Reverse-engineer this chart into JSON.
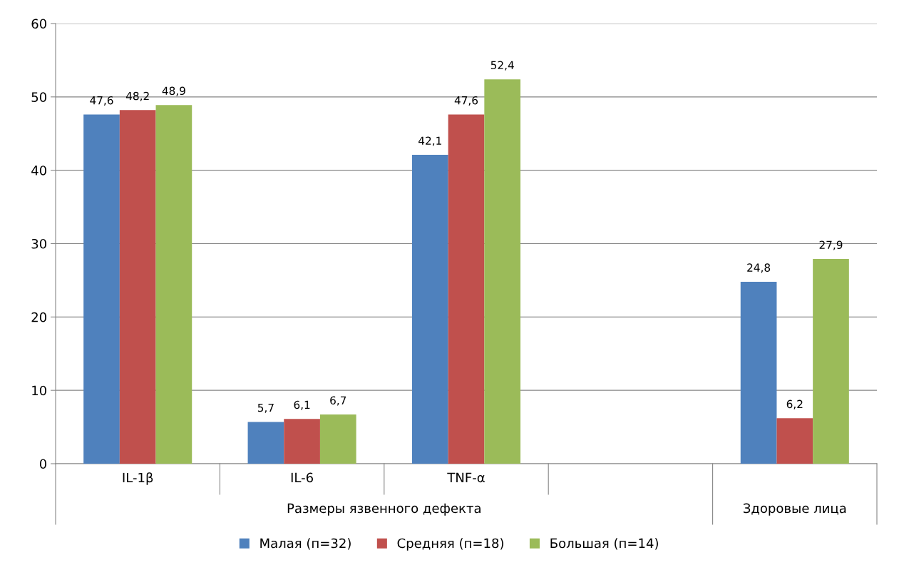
{
  "chart_data": {
    "type": "bar",
    "categories": [
      "IL-1β",
      "IL-6",
      "TNF-α",
      null,
      null
    ],
    "series": [
      {
        "name": "Малая (п=32)",
        "color": "#4f81bd",
        "values": [
          47.6,
          5.7,
          42.1,
          null,
          24.8
        ],
        "value_labels": [
          "47,6",
          "5,7",
          "42,1",
          null,
          "24,8"
        ]
      },
      {
        "name": "Средняя (п=18)",
        "color": "#c0504d",
        "values": [
          48.2,
          6.1,
          47.6,
          null,
          6.2
        ],
        "value_labels": [
          "48,2",
          "6,1",
          "47,6",
          null,
          "6,2"
        ]
      },
      {
        "name": "Большая (п=14)",
        "color": "#9bbb59",
        "values": [
          48.9,
          6.7,
          52.4,
          null,
          27.9
        ],
        "value_labels": [
          "48,9",
          "6,7",
          "52,4",
          null,
          "27,9"
        ]
      }
    ],
    "annotations": [
      "Размеры язвенного дефекта",
      "Здоровые лица"
    ],
    "ylim": [
      0,
      60
    ],
    "yticks": [
      0,
      10,
      20,
      30,
      40,
      50,
      60
    ],
    "grid": "y",
    "legend": "bottom"
  }
}
